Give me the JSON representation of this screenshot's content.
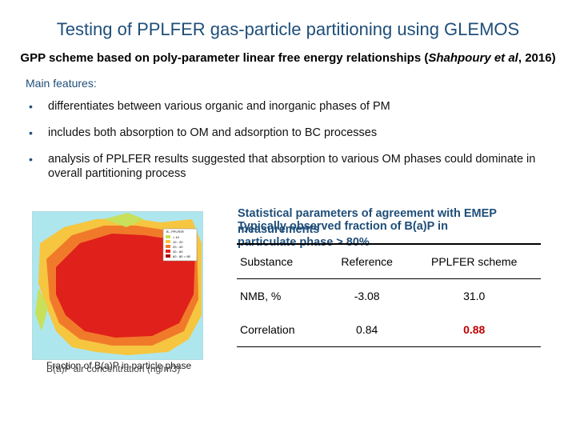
{
  "title": "Testing of PPLFER gas-particle partitioning using GLEMOS",
  "subtitle": {
    "prefix": "GPP scheme based on poly-parameter linear free energy relationships (",
    "citation": "Shahpoury et al",
    "suffix": ", 2016)"
  },
  "features": {
    "heading": "Main features:",
    "bullet_glyph": "•",
    "items": [
      "differentiates between various organic and inorganic phases of PM",
      "includes both absorption to OM and adsorption to BC processes",
      "analysis of PPLFER results suggested that absorption to various OM phases could dominate in overall partitioning process"
    ]
  },
  "map": {
    "caption_1": "Fraction of B(a)P in particle phase",
    "caption_2": "B(a)P air concentration (ng/m3)",
    "legend_items": [
      "B - PPLFER",
      "< 10",
      "10 - 20",
      "20 - 40",
      "40 - 60",
      "60 - 80",
      "> 80"
    ],
    "colors": {
      "sea": "#aee6ee",
      "land_high": "#e0201a",
      "land_mid": "#f07a2a",
      "land_low": "#f6c640",
      "land_lowest": "#c8e05a"
    }
  },
  "stats": {
    "title_line_1": "Statistical parameters of agreement with EMEP",
    "title_line_2": "measurements",
    "overlap_text": "Typically observed fraction of B(a)P in",
    "overlap_text_2": "particulate phase > 80%",
    "columns": [
      "Substance",
      "Reference",
      "PPLFER scheme"
    ],
    "rows": [
      {
        "substance": "NMB, %",
        "reference": "-3.08",
        "pplfer": "31.0"
      },
      {
        "substance": "Correlation",
        "reference": "0.84",
        "pplfer": "0.88"
      }
    ],
    "highlight_color": "#c00000"
  }
}
